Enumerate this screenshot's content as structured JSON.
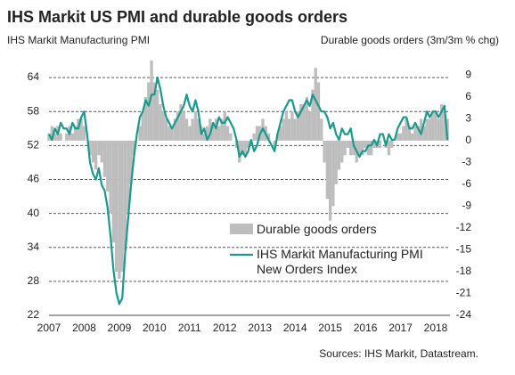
{
  "chart_data": {
    "type": "combo",
    "title": "IHS Markit US PMI and durable goods orders",
    "y_label": "IHS  Markit Manufacturing PMI",
    "y2_label": "Durable goods orders (3m/3m % chg)",
    "source": "Sources: IHS Markit, Datastream.",
    "categories": [
      "2007",
      null,
      null,
      null,
      null,
      null,
      null,
      null,
      null,
      null,
      null,
      null,
      "2008",
      null,
      null,
      null,
      null,
      null,
      null,
      null,
      null,
      null,
      null,
      null,
      "2009",
      null,
      null,
      null,
      null,
      null,
      null,
      null,
      null,
      null,
      null,
      null,
      "2010",
      null,
      null,
      null,
      null,
      null,
      null,
      null,
      null,
      null,
      null,
      null,
      "2011",
      null,
      null,
      null,
      null,
      null,
      null,
      null,
      null,
      null,
      null,
      null,
      "2012",
      null,
      null,
      null,
      null,
      null,
      null,
      null,
      null,
      null,
      null,
      null,
      "2013",
      null,
      null,
      null,
      null,
      null,
      null,
      null,
      null,
      null,
      null,
      null,
      "2014",
      null,
      null,
      null,
      null,
      null,
      null,
      null,
      null,
      null,
      null,
      null,
      "2015",
      null,
      null,
      null,
      null,
      null,
      null,
      null,
      null,
      null,
      null,
      null,
      "2016",
      null,
      null,
      null,
      null,
      null,
      null,
      null,
      null,
      null,
      null,
      null,
      "2017",
      null,
      null,
      null,
      null,
      null,
      null,
      null,
      null,
      null,
      null,
      null,
      "2018",
      null,
      null,
      null,
      null
    ],
    "ylim": [
      22,
      67
    ],
    "yticks": [
      22,
      28,
      34,
      40,
      46,
      52,
      58,
      64
    ],
    "y2lim": [
      -24,
      11
    ],
    "y2ticks": [
      -24,
      -21,
      -18,
      -15,
      -12,
      -9,
      -6,
      -3,
      0,
      3,
      6,
      9
    ],
    "grid": true,
    "legend": "lower center",
    "series": [
      {
        "name": "Durable goods orders",
        "type": "bar",
        "axis": "y2",
        "color": "#bdbdbd",
        "values": [
          1,
          2,
          1,
          2,
          1,
          0,
          1,
          2,
          1,
          2,
          3,
          3,
          2,
          0,
          -2,
          -3,
          -4,
          -2,
          -3,
          -5,
          -7,
          -10,
          -14,
          -18,
          -19,
          -18,
          -15,
          -10,
          -6,
          -2,
          0,
          2,
          4,
          6,
          8,
          11,
          8,
          7,
          5,
          4,
          3,
          2,
          2,
          3,
          4,
          5,
          4,
          3,
          2,
          3,
          4,
          3,
          2,
          1,
          2,
          3,
          2,
          3,
          2,
          3,
          4,
          2,
          1,
          0,
          -1,
          -3,
          -2,
          -2,
          -1,
          0,
          1,
          2,
          2,
          3,
          2,
          1,
          0,
          -1,
          1,
          2,
          3,
          4,
          3,
          4,
          3,
          4,
          5,
          5,
          6,
          4,
          7,
          10,
          8,
          3,
          -3,
          -8,
          -11,
          -9,
          -6,
          -4,
          -3,
          -2,
          -1,
          -2,
          -2,
          -3,
          -2,
          -2,
          -1,
          -2,
          -2,
          -1,
          -1,
          -1,
          0,
          -1,
          -2,
          -1,
          0,
          1,
          1,
          2,
          3,
          2,
          1,
          2,
          2,
          3,
          2,
          3,
          3,
          4,
          4,
          3,
          5,
          4,
          3
        ]
      },
      {
        "name": "IHS Markit Manufacturing PMI New Orders Index",
        "type": "line",
        "color": "#1a9a8c",
        "values": [
          54,
          53,
          55,
          54,
          56,
          55,
          55,
          54,
          56,
          55,
          55,
          57,
          58,
          54,
          49,
          47,
          46,
          48,
          45,
          44,
          41,
          36,
          30,
          26,
          24,
          25,
          33,
          39,
          45,
          50,
          54,
          57,
          58,
          60,
          59,
          61,
          61,
          64,
          62,
          59,
          57,
          56,
          55,
          56,
          57,
          58,
          59,
          61,
          59,
          58,
          60,
          58,
          54,
          55,
          53,
          54,
          56,
          55,
          57,
          56,
          56,
          57,
          56,
          55,
          53,
          50,
          51,
          50,
          51,
          53,
          51,
          52,
          54,
          55,
          54,
          53,
          52,
          51,
          54,
          56,
          58,
          59,
          60,
          60,
          58,
          57,
          58,
          59,
          60,
          59,
          61,
          60,
          59,
          58,
          58,
          57,
          55,
          56,
          54,
          53,
          55,
          54,
          54,
          55,
          52,
          51,
          50,
          51,
          51,
          52,
          52,
          53,
          52,
          54,
          54,
          52,
          54,
          53,
          53,
          55,
          56,
          57,
          57,
          55,
          55,
          56,
          55,
          54,
          56,
          58,
          57,
          58,
          58,
          57,
          58,
          59,
          53
        ]
      }
    ]
  }
}
